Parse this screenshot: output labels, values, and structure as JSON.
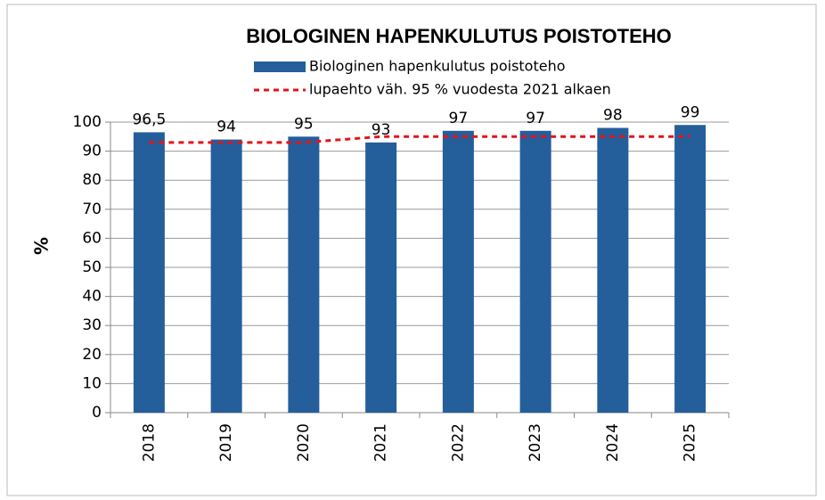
{
  "chart_data": {
    "type": "bar",
    "title": "BIOLOGINEN HAPENKULUTUS POISTOTEHO",
    "y_label": "%",
    "categories": [
      "2018",
      "2019",
      "2020",
      "2021",
      "2022",
      "2023",
      "2024",
      "2025"
    ],
    "series": [
      {
        "name": "Biologinen hapenkulutus poistoteho",
        "type": "bar",
        "color": "#245e9b",
        "values": [
          96.5,
          94,
          95,
          93,
          97,
          97,
          98,
          99
        ],
        "value_labels": [
          "96,5",
          "94",
          "95",
          "93",
          "97",
          "97",
          "98",
          "99"
        ]
      },
      {
        "name": "lupaehto väh. 95 % vuodesta 2021 alkaen",
        "type": "line",
        "color": "#e3141b",
        "values": [
          93,
          93,
          93,
          95,
          95,
          95,
          95,
          95
        ]
      }
    ],
    "ylim": [
      0,
      100
    ],
    "yticks": [
      0,
      10,
      20,
      30,
      40,
      50,
      60,
      70,
      80,
      90,
      100
    ],
    "grid": true
  }
}
